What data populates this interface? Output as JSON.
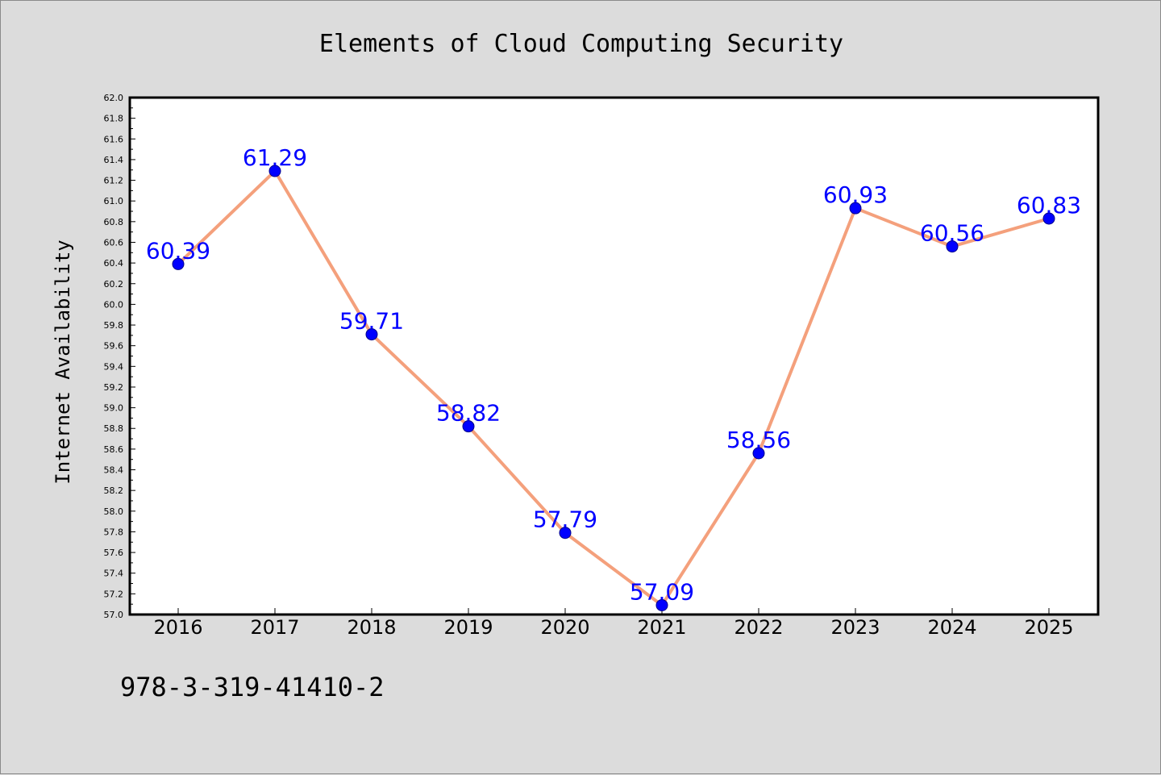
{
  "chart_data": {
    "type": "line",
    "title": "Elements of Cloud Computing Security",
    "xlabel": "",
    "ylabel": "Internet Availability",
    "categories": [
      "2016",
      "2017",
      "2018",
      "2019",
      "2020",
      "2021",
      "2022",
      "2023",
      "2024",
      "2025"
    ],
    "series": [
      {
        "values": [
          60.39,
          61.29,
          59.71,
          58.82,
          57.79,
          57.09,
          58.56,
          60.93,
          60.56,
          60.83
        ],
        "data_labels": [
          "60.39",
          "61.29",
          "59.71",
          "58.82",
          "57.79",
          "57.09",
          "58.56",
          "60.93",
          "60.56",
          "60.83"
        ]
      }
    ],
    "ylim": [
      57.0,
      62.0
    ],
    "yticks": [
      "57.0",
      "57.2",
      "57.4",
      "57.6",
      "57.8",
      "58.0",
      "58.2",
      "58.4",
      "58.6",
      "58.8",
      "59.0",
      "59.2",
      "59.4",
      "59.6",
      "59.8",
      "60.0",
      "60.2",
      "60.4",
      "60.6",
      "60.8",
      "61.0",
      "61.2",
      "61.4",
      "61.6",
      "61.8",
      "62.0"
    ],
    "grid": false,
    "legend": "none"
  },
  "footnote": "978-3-319-41410-2",
  "colors": {
    "background": "#dcdcdc",
    "plot_area": "#ffffff",
    "line": "#f4a07c",
    "marker": "#0000ff",
    "data_label": "#0000ff"
  }
}
